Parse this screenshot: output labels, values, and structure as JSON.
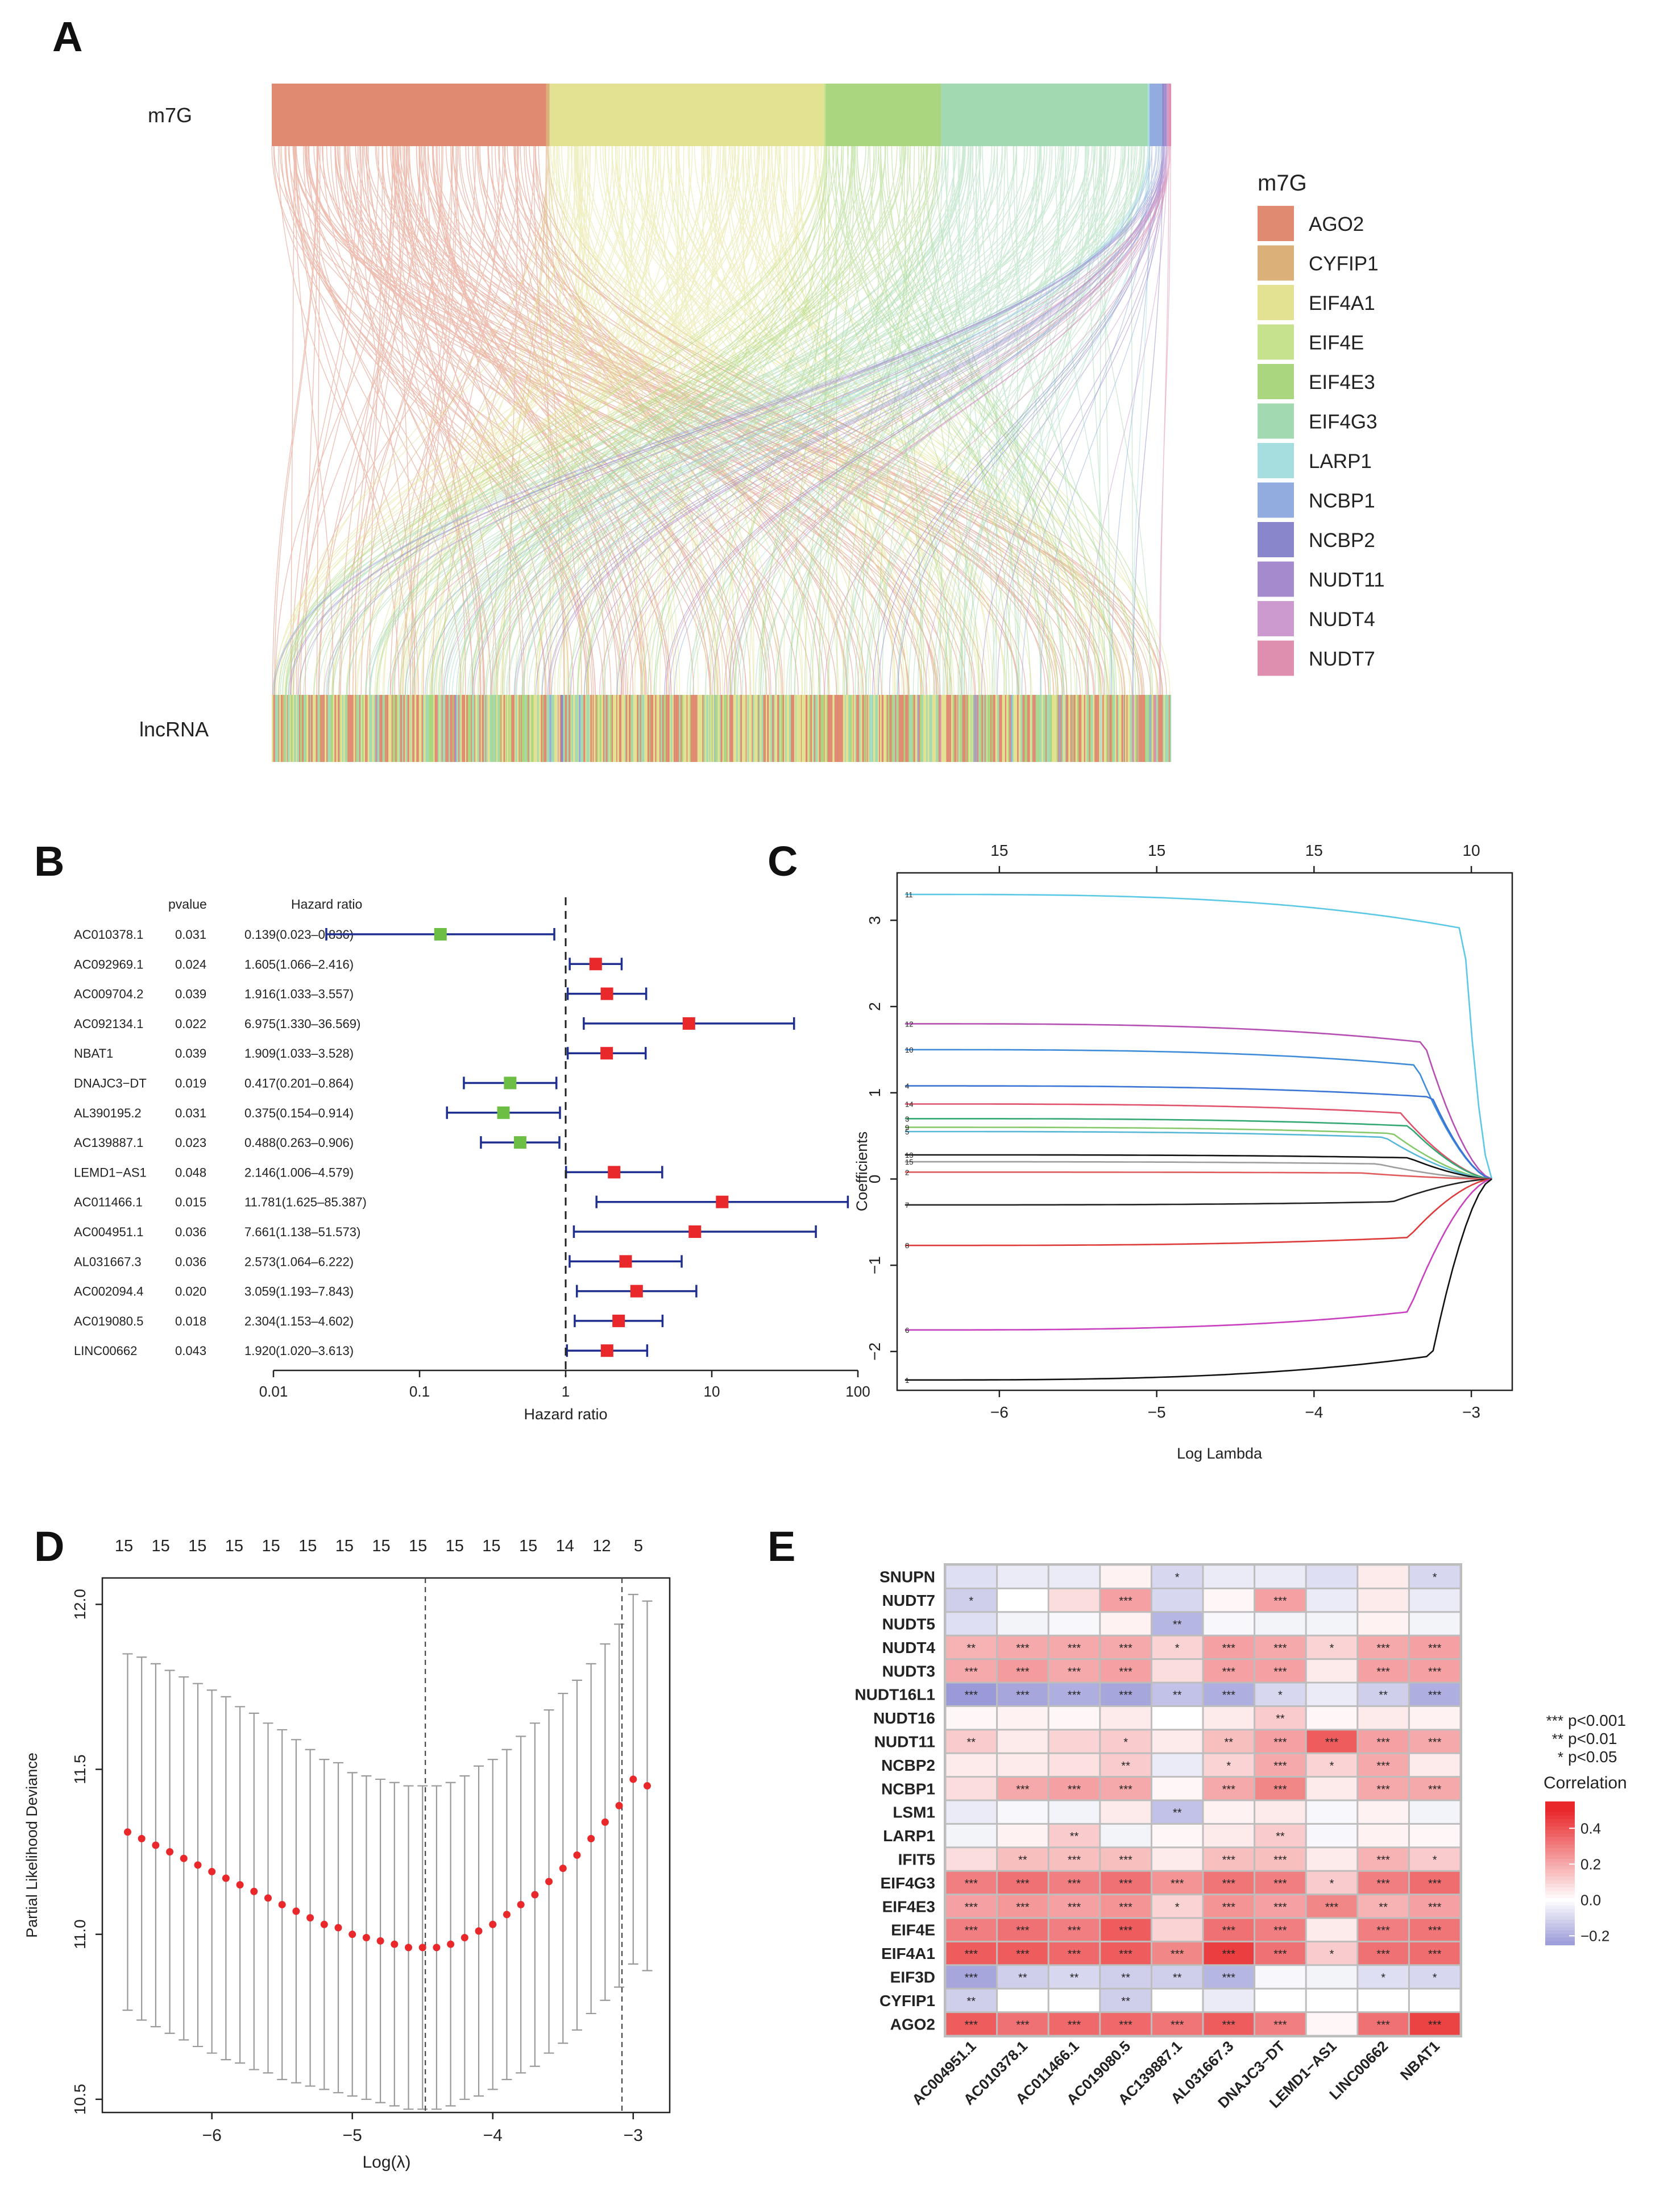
{
  "panels": {
    "A": "A",
    "B": "B",
    "C": "C",
    "D": "D",
    "E": "E"
  },
  "chart_data": [
    {
      "panel": "A",
      "type": "sankey",
      "top_label": "m7G",
      "bottom_label": "lncRNA",
      "legend_title": "m7G",
      "legend": [
        {
          "name": "AGO2",
          "color": "#e08a72"
        },
        {
          "name": "CYFIP1",
          "color": "#dbb079"
        },
        {
          "name": "EIF4A1",
          "color": "#e2e292"
        },
        {
          "name": "EIF4E",
          "color": "#c6e28f"
        },
        {
          "name": "EIF4E3",
          "color": "#a9d67f"
        },
        {
          "name": "EIF4G3",
          "color": "#a3d9b1"
        },
        {
          "name": "LARP1",
          "color": "#a6dedf"
        },
        {
          "name": "NCBP1",
          "color": "#93acdf"
        },
        {
          "name": "NCBP2",
          "color": "#8a86cc"
        },
        {
          "name": "NUDT11",
          "color": "#a68ace"
        },
        {
          "name": "NUDT4",
          "color": "#cc9acf"
        },
        {
          "name": "NUDT7",
          "color": "#de8eae"
        }
      ],
      "proportions": [
        0.305,
        0.004,
        0.305,
        0.002,
        0.128,
        0.23,
        0.002,
        0.014,
        0.002,
        0.003,
        0.002,
        0.003
      ]
    },
    {
      "panel": "B",
      "type": "forest",
      "header_pvalue": "pvalue",
      "header_hr": "Hazard ratio",
      "xlabel": "Hazard ratio",
      "xscale": "log",
      "xticks": [
        "0.01",
        "0.1",
        "1",
        "10",
        "100"
      ],
      "reference_line": 1,
      "rows": [
        {
          "gene": "AC010378.1",
          "pvalue": "0.031",
          "hr_text": "0.139(0.023–0.836)",
          "hr": 0.139,
          "lo": 0.023,
          "hi": 0.836
        },
        {
          "gene": "AC092969.1",
          "pvalue": "0.024",
          "hr_text": "1.605(1.066–2.416)",
          "hr": 1.605,
          "lo": 1.066,
          "hi": 2.416
        },
        {
          "gene": "AC009704.2",
          "pvalue": "0.039",
          "hr_text": "1.916(1.033–3.557)",
          "hr": 1.916,
          "lo": 1.033,
          "hi": 3.557
        },
        {
          "gene": "AC092134.1",
          "pvalue": "0.022",
          "hr_text": "6.975(1.330–36.569)",
          "hr": 6.975,
          "lo": 1.33,
          "hi": 36.569
        },
        {
          "gene": "NBAT1",
          "pvalue": "0.039",
          "hr_text": "1.909(1.033–3.528)",
          "hr": 1.909,
          "lo": 1.033,
          "hi": 3.528
        },
        {
          "gene": "DNAJC3−DT",
          "pvalue": "0.019",
          "hr_text": "0.417(0.201–0.864)",
          "hr": 0.417,
          "lo": 0.201,
          "hi": 0.864
        },
        {
          "gene": "AL390195.2",
          "pvalue": "0.031",
          "hr_text": "0.375(0.154–0.914)",
          "hr": 0.375,
          "lo": 0.154,
          "hi": 0.914
        },
        {
          "gene": "AC139887.1",
          "pvalue": "0.023",
          "hr_text": "0.488(0.263–0.906)",
          "hr": 0.488,
          "lo": 0.263,
          "hi": 0.906
        },
        {
          "gene": "LEMD1−AS1",
          "pvalue": "0.048",
          "hr_text": "2.146(1.006–4.579)",
          "hr": 2.146,
          "lo": 1.006,
          "hi": 4.579
        },
        {
          "gene": "AC011466.1",
          "pvalue": "0.015",
          "hr_text": "11.781(1.625–85.387)",
          "hr": 11.781,
          "lo": 1.625,
          "hi": 85.387
        },
        {
          "gene": "AC004951.1",
          "pvalue": "0.036",
          "hr_text": "7.661(1.138–51.573)",
          "hr": 7.661,
          "lo": 1.138,
          "hi": 51.573
        },
        {
          "gene": "AL031667.3",
          "pvalue": "0.036",
          "hr_text": "2.573(1.064–6.222)",
          "hr": 2.573,
          "lo": 1.064,
          "hi": 6.222
        },
        {
          "gene": "AC002094.4",
          "pvalue": "0.020",
          "hr_text": "3.059(1.193–7.843)",
          "hr": 3.059,
          "lo": 1.193,
          "hi": 7.843
        },
        {
          "gene": "AC019080.5",
          "pvalue": "0.018",
          "hr_text": "2.304(1.153–4.602)",
          "hr": 2.304,
          "lo": 1.153,
          "hi": 4.602
        },
        {
          "gene": "LINC00662",
          "pvalue": "0.043",
          "hr_text": "1.920(1.020–3.613)",
          "hr": 1.92,
          "lo": 1.02,
          "hi": 3.613
        }
      ]
    },
    {
      "panel": "C",
      "type": "line",
      "xlabel": "Log Lambda",
      "ylabel": "Coefficients",
      "xlim": [
        -6.65,
        -2.74
      ],
      "ylim": [
        -2.45,
        3.55
      ],
      "xticks": [
        -6,
        -5,
        -4,
        -3
      ],
      "yticks": [
        -2,
        -1,
        0,
        1,
        2,
        3
      ],
      "top_ticks": [
        {
          "x": -6,
          "label": "15"
        },
        {
          "x": -5,
          "label": "15"
        },
        {
          "x": -4,
          "label": "15"
        },
        {
          "x": -3,
          "label": "10"
        }
      ],
      "x_start": -6.6,
      "x_end": -2.87,
      "series": [
        {
          "name": "11",
          "start": 3.3,
          "drop_at": -3.05,
          "color": "#5bc8e6"
        },
        {
          "name": "12",
          "start": 1.8,
          "drop_at": -3.3,
          "color": "#b64fb3"
        },
        {
          "name": "10",
          "start": 1.5,
          "drop_at": -3.35,
          "color": "#3d8bd9"
        },
        {
          "name": "4",
          "start": 1.08,
          "drop_at": -3.25,
          "color": "#3a75d6"
        },
        {
          "name": "14",
          "start": 0.87,
          "drop_at": -3.45,
          "color": "#e0506a"
        },
        {
          "name": "3",
          "start": 0.7,
          "drop_at": -3.4,
          "color": "#33a873"
        },
        {
          "name": "9",
          "start": 0.6,
          "drop_at": -3.5,
          "color": "#86c96a"
        },
        {
          "name": "5",
          "start": 0.55,
          "drop_at": -3.55,
          "color": "#56b8d6"
        },
        {
          "name": "13",
          "start": 0.28,
          "drop_at": -3.4,
          "color": "#111111"
        },
        {
          "name": "15",
          "start": 0.2,
          "drop_at": -3.6,
          "color": "#9d9d9d"
        },
        {
          "name": "2",
          "start": 0.08,
          "drop_at": -3.7,
          "color": "#e05c5c"
        },
        {
          "name": "7",
          "start": -0.3,
          "drop_at": -3.5,
          "color": "#222222"
        },
        {
          "name": "8",
          "start": -0.77,
          "drop_at": -3.4,
          "color": "#dd3a3a"
        },
        {
          "name": "6",
          "start": -1.75,
          "drop_at": -3.4,
          "color": "#c83fbf"
        },
        {
          "name": "1",
          "start": -2.33,
          "drop_at": -3.25,
          "color": "#111111"
        }
      ]
    },
    {
      "panel": "D",
      "type": "scatter",
      "xlabel": "Log(λ)",
      "ylabel": "Partial Likelihood Deviance",
      "xlim": [
        -6.78,
        -2.74
      ],
      "ylim": [
        10.46,
        12.08
      ],
      "xticks": [
        -6,
        -5,
        -4,
        -3
      ],
      "yticks": [
        10.5,
        11.0,
        11.5,
        12.0
      ],
      "top_labels": [
        "15",
        "15",
        "15",
        "15",
        "15",
        "15",
        "15",
        "15",
        "15",
        "15",
        "15",
        "15",
        "14",
        "12",
        "5"
      ],
      "vlines": [
        -4.48,
        -3.08
      ],
      "x": [
        -6.6,
        -6.5,
        -6.4,
        -6.3,
        -6.2,
        -6.1,
        -6.0,
        -5.9,
        -5.8,
        -5.7,
        -5.6,
        -5.5,
        -5.4,
        -5.3,
        -5.2,
        -5.1,
        -5.0,
        -4.9,
        -4.8,
        -4.7,
        -4.6,
        -4.5,
        -4.4,
        -4.3,
        -4.2,
        -4.1,
        -4.0,
        -3.9,
        -3.8,
        -3.7,
        -3.6,
        -3.5,
        -3.4,
        -3.3,
        -3.2,
        -3.1,
        -3.0,
        -2.9
      ],
      "y": [
        11.31,
        11.29,
        11.27,
        11.25,
        11.23,
        11.21,
        11.19,
        11.17,
        11.15,
        11.13,
        11.11,
        11.09,
        11.07,
        11.05,
        11.03,
        11.02,
        11.0,
        10.99,
        10.98,
        10.97,
        10.96,
        10.96,
        10.96,
        10.97,
        10.99,
        11.01,
        11.03,
        11.06,
        11.09,
        11.12,
        11.16,
        11.2,
        11.24,
        11.29,
        11.34,
        11.39,
        11.47,
        11.45
      ],
      "err": [
        0.54,
        0.55,
        0.55,
        0.55,
        0.55,
        0.55,
        0.55,
        0.55,
        0.54,
        0.54,
        0.53,
        0.53,
        0.52,
        0.51,
        0.5,
        0.5,
        0.49,
        0.49,
        0.49,
        0.49,
        0.49,
        0.49,
        0.49,
        0.49,
        0.49,
        0.5,
        0.5,
        0.5,
        0.51,
        0.52,
        0.52,
        0.53,
        0.53,
        0.53,
        0.54,
        0.55,
        0.56,
        0.56
      ]
    },
    {
      "panel": "E",
      "type": "heatmap",
      "rows": [
        "SNUPN",
        "NUDT7",
        "NUDT5",
        "NUDT4",
        "NUDT3",
        "NUDT16L1",
        "NUDT16",
        "NUDT11",
        "NCBP2",
        "NCBP1",
        "LSM1",
        "LARP1",
        "IFIT5",
        "EIF4G3",
        "EIF4E3",
        "EIF4E",
        "EIF4A1",
        "EIF3D",
        "CYFIP1",
        "AGO2"
      ],
      "columns": [
        "AC004951.1",
        "AC010378.1",
        "AC011466.1",
        "AC019080.5",
        "AC139887.1",
        "AL031667.3",
        "DNAJC3−DT",
        "LEMD1−AS1",
        "LINC00662",
        "NBAT1"
      ],
      "values": [
        [
          -0.08,
          -0.05,
          -0.05,
          0.03,
          -0.1,
          -0.05,
          -0.05,
          -0.08,
          0.05,
          -0.1
        ],
        [
          -0.12,
          0.0,
          0.08,
          0.22,
          -0.1,
          0.02,
          0.22,
          -0.05,
          0.05,
          -0.05
        ],
        [
          -0.08,
          -0.03,
          -0.02,
          0.03,
          -0.18,
          -0.02,
          -0.03,
          -0.03,
          0.03,
          -0.03
        ],
        [
          0.18,
          0.2,
          0.2,
          0.2,
          0.1,
          0.22,
          0.2,
          0.1,
          0.2,
          0.22
        ],
        [
          0.2,
          0.23,
          0.2,
          0.22,
          0.08,
          0.22,
          0.22,
          0.05,
          0.22,
          0.22
        ],
        [
          -0.25,
          -0.22,
          -0.2,
          -0.22,
          -0.15,
          -0.2,
          -0.1,
          -0.05,
          -0.12,
          -0.2
        ],
        [
          0.02,
          0.03,
          0.02,
          0.05,
          0.0,
          0.05,
          0.12,
          0.02,
          0.05,
          0.03
        ],
        [
          0.12,
          0.05,
          0.1,
          0.12,
          0.05,
          0.15,
          0.22,
          0.38,
          0.22,
          0.2
        ],
        [
          0.05,
          0.05,
          0.07,
          0.12,
          -0.05,
          0.1,
          0.2,
          0.1,
          0.2,
          0.05
        ],
        [
          0.08,
          0.2,
          0.22,
          0.2,
          0.02,
          0.2,
          0.28,
          0.05,
          0.2,
          0.2
        ],
        [
          -0.05,
          -0.02,
          -0.03,
          0.05,
          -0.15,
          0.03,
          0.05,
          -0.02,
          0.03,
          -0.03
        ],
        [
          -0.03,
          0.03,
          0.12,
          -0.03,
          0.02,
          0.05,
          0.12,
          -0.02,
          0.03,
          0.02
        ],
        [
          0.08,
          0.15,
          0.15,
          0.15,
          0.05,
          0.15,
          0.15,
          0.05,
          0.18,
          0.12
        ],
        [
          0.3,
          0.33,
          0.3,
          0.33,
          0.25,
          0.32,
          0.3,
          0.12,
          0.3,
          0.34
        ],
        [
          0.22,
          0.24,
          0.22,
          0.25,
          0.1,
          0.25,
          0.22,
          0.28,
          0.18,
          0.22
        ],
        [
          0.3,
          0.33,
          0.3,
          0.38,
          0.1,
          0.33,
          0.3,
          0.05,
          0.3,
          0.32
        ],
        [
          0.38,
          0.38,
          0.35,
          0.38,
          0.28,
          0.45,
          0.33,
          0.12,
          0.33,
          0.34
        ],
        [
          -0.22,
          -0.12,
          -0.1,
          -0.12,
          -0.12,
          -0.18,
          -0.02,
          -0.03,
          -0.08,
          -0.1
        ],
        [
          -0.12,
          0.0,
          0.0,
          -0.12,
          0.0,
          -0.05,
          0.0,
          0.0,
          0.0,
          0.0
        ],
        [
          0.38,
          0.33,
          0.35,
          0.35,
          0.32,
          0.38,
          0.3,
          0.02,
          0.33,
          0.44
        ]
      ],
      "stars": [
        [
          "",
          "",
          "",
          "",
          "*",
          "",
          "",
          "",
          "",
          "*"
        ],
        [
          "*",
          "",
          "",
          "***",
          "",
          "",
          "***",
          "",
          "",
          ""
        ],
        [
          "",
          "",
          "",
          "",
          "**",
          "",
          "",
          "",
          "",
          ""
        ],
        [
          "**",
          "***",
          "***",
          "***",
          "*",
          "***",
          "***",
          "*",
          "***",
          "***"
        ],
        [
          "***",
          "***",
          "***",
          "***",
          "",
          "***",
          "***",
          "",
          "***",
          "***"
        ],
        [
          "***",
          "***",
          "***",
          "***",
          "**",
          "***",
          "*",
          "",
          "**",
          "***"
        ],
        [
          "",
          "",
          "",
          "",
          "",
          "",
          "**",
          "",
          "",
          ""
        ],
        [
          "**",
          "",
          "",
          "*",
          "",
          "**",
          "***",
          "***",
          "***",
          "***"
        ],
        [
          "",
          "",
          "",
          "**",
          "",
          "*",
          "***",
          "*",
          "***",
          ""
        ],
        [
          "",
          "***",
          "***",
          "***",
          "",
          "***",
          "***",
          "",
          "***",
          "***"
        ],
        [
          "",
          "",
          "",
          "",
          "**",
          "",
          "",
          "",
          "",
          ""
        ],
        [
          "",
          "",
          "**",
          "",
          "",
          "",
          "**",
          "",
          "",
          ""
        ],
        [
          "",
          "**",
          "***",
          "***",
          "",
          "***",
          "***",
          "",
          "***",
          "*"
        ],
        [
          "***",
          "***",
          "***",
          "***",
          "***",
          "***",
          "***",
          "*",
          "***",
          "***"
        ],
        [
          "***",
          "***",
          "***",
          "***",
          "*",
          "***",
          "***",
          "***",
          "**",
          "***"
        ],
        [
          "***",
          "***",
          "***",
          "***",
          "",
          "***",
          "***",
          "",
          "***",
          "***"
        ],
        [
          "***",
          "***",
          "***",
          "***",
          "***",
          "***",
          "***",
          "*",
          "***",
          "***"
        ],
        [
          "***",
          "**",
          "**",
          "**",
          "**",
          "***",
          "",
          "",
          "*",
          "*"
        ],
        [
          "**",
          "",
          "",
          "**",
          "",
          "",
          "",
          "",
          "",
          ""
        ],
        [
          "***",
          "***",
          "***",
          "***",
          "***",
          "***",
          "***",
          "",
          "***",
          "***"
        ]
      ],
      "sig_legend": [
        {
          "stars": "***",
          "text": "p<0.001"
        },
        {
          "stars": "**",
          "text": "p<0.01"
        },
        {
          "stars": "*",
          "text": "p<0.05"
        }
      ],
      "colorbar_title": "Correlation",
      "colorbar_range": [
        -0.25,
        0.55
      ],
      "colorbar_ticks": [
        {
          "value": 0.4,
          "label": "0.4"
        },
        {
          "value": 0.2,
          "label": "0.2"
        },
        {
          "value": 0.0,
          "label": "0.0"
        },
        {
          "value": -0.2,
          "label": "−0.2"
        }
      ],
      "colors": {
        "low": "#9a9ad8",
        "mid": "#ffffff",
        "high": "#e8282b"
      }
    }
  ]
}
